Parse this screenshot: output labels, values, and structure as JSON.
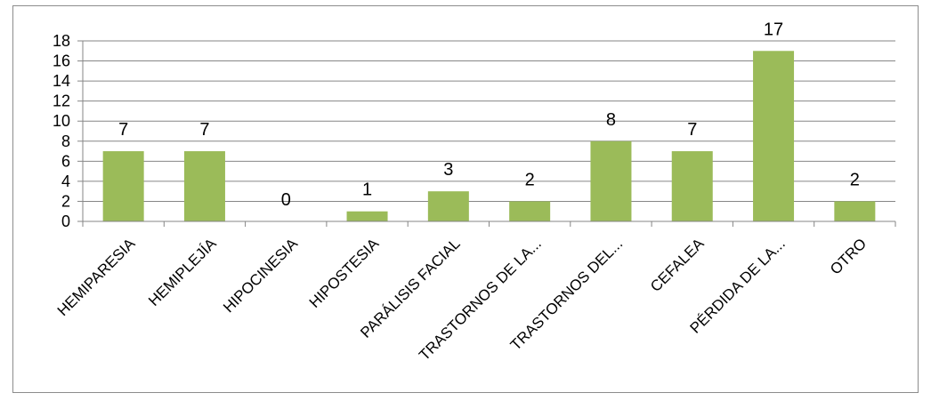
{
  "chart_data": {
    "type": "bar",
    "categories": [
      "HEMIPARESIA",
      "HEMIPLEJÍA",
      "HIPOCINESIA",
      "HIPOSTESIA",
      "PARÁLISIS FACIAL",
      "TRASTORNOS DE LA...",
      "TRASTORNOS DEL...",
      "CEFALEA",
      "PÉRDIDA DE LA...",
      "OTRO"
    ],
    "values": [
      7,
      7,
      0,
      1,
      3,
      2,
      8,
      7,
      17,
      2
    ],
    "title": "",
    "xlabel": "",
    "ylabel": "",
    "ylim": [
      0,
      18
    ],
    "yticks": [
      0,
      2,
      4,
      6,
      8,
      10,
      12,
      14,
      16,
      18
    ],
    "grid": true,
    "legend": "none",
    "bar_color": "#9bbb59",
    "grid_color": "#868686"
  }
}
